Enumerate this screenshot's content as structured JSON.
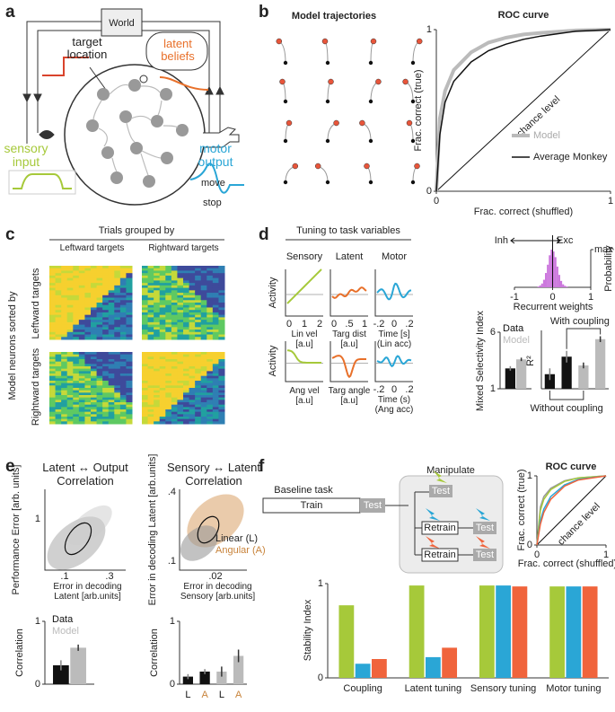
{
  "panel_labels": [
    "a",
    "b",
    "c",
    "d",
    "e",
    "f"
  ],
  "schematic": {
    "world": "World",
    "target_location": "target location",
    "latent_beliefs": "latent beliefs",
    "sensory_input": "sensory input",
    "motor_output": "motor output",
    "move": "move",
    "stop": "stop"
  },
  "trajectories": {
    "title": "Model trajectories"
  },
  "heatmap": {
    "title": "Trials grouped by",
    "columns": [
      "Leftward targets",
      "Rightward targets"
    ],
    "row_title": "Model neurons sorted by",
    "rows": [
      "Leftward targets",
      "Rightward targets"
    ]
  },
  "tuning": {
    "title": "Tuning to task variables",
    "columns": [
      "Sensory",
      "Latent",
      "Motor"
    ],
    "ylabel": "Activity",
    "rows": [
      {
        "ticks": [
          [
            "0",
            "1",
            "2"
          ],
          [
            "0",
            ".5",
            "1"
          ],
          [
            "-.2",
            "0",
            ".2"
          ]
        ],
        "xlabels": [
          "Lin vel [a.u]",
          "Targ dist [a.u]",
          "Time [s] (Lin acc)"
        ]
      },
      {
        "ticks": [
          [],
          [],
          [
            "-.2",
            "0",
            ".2"
          ]
        ],
        "xlabels": [
          "Ang vel [a.u]",
          "Targ angle [a.u]",
          "Time (s) (Ang acc)"
        ]
      }
    ]
  },
  "scatter_panels": [
    {
      "title": "Latent ↔ Output Correlation",
      "xlabel": "Error in decoding Latent [arb.units]",
      "ylabel": "Performance Error [arb. units]",
      "xticks": [
        ".1",
        ".3"
      ],
      "yticks": [
        "1"
      ]
    },
    {
      "title": "Sensory ↔ Latent Correlation",
      "xlabel": "Error in decoding Sensory [arb.units]",
      "ylabel": "Error in decoding Latent [arb.units]",
      "xticks": [
        ".02"
      ],
      "yticks": [
        ".4",
        ".1"
      ],
      "legend": [
        "Linear (L)",
        "Angular (A)"
      ]
    }
  ],
  "training": {
    "baseline": "Baseline task",
    "train": "Train",
    "test": "Test",
    "manipulate": "Manipulate",
    "retrain": "Retrain"
  },
  "chart_data": [
    {
      "type": "line",
      "title": "ROC curve",
      "xlabel": "Frac. correct (shuffled)",
      "ylabel": "Frac. correct (true)",
      "annotation": "chance level",
      "xlim": [
        0,
        1
      ],
      "ylim": [
        0,
        1
      ],
      "xticks": [
        0,
        1
      ],
      "yticks": [
        0,
        1
      ],
      "legend": "lower right",
      "series": [
        {
          "name": "Model",
          "color": "#bbbbbb",
          "linewidth": 4,
          "x": [
            0,
            0.02,
            0.05,
            0.1,
            0.2,
            0.3,
            0.4,
            0.5,
            0.6,
            0.8,
            1
          ],
          "values": [
            0,
            0.45,
            0.62,
            0.75,
            0.86,
            0.92,
            0.95,
            0.97,
            0.98,
            0.995,
            1
          ]
        },
        {
          "name": "Average Monkey",
          "color": "#111111",
          "linewidth": 1.5,
          "x": [
            0,
            0.02,
            0.05,
            0.1,
            0.2,
            0.3,
            0.4,
            0.5,
            0.6,
            0.8,
            1
          ],
          "values": [
            0,
            0.35,
            0.55,
            0.68,
            0.8,
            0.87,
            0.91,
            0.94,
            0.96,
            0.99,
            1
          ]
        }
      ]
    },
    {
      "type": "histogram",
      "xlabel": "Recurrent weights",
      "ylabel": "Probability",
      "annotations": [
        "Inh",
        "Exc"
      ],
      "color": "#cc77dd",
      "bins": [
        -0.4,
        -0.35,
        -0.3,
        -0.25,
        -0.2,
        -0.15,
        -0.1,
        -0.05,
        0,
        0.05,
        0.1,
        0.15,
        0.2,
        0.25,
        0.3,
        0.35,
        0.4
      ],
      "values": [
        0.02,
        0.05,
        0.1,
        0.2,
        0.38,
        0.6,
        0.85,
        1,
        0.95,
        0.8,
        0.55,
        0.33,
        0.17,
        0.08,
        0.04,
        0.02
      ],
      "xlim": [
        -1,
        1
      ],
      "xticks": [
        -1,
        0,
        1
      ],
      "ylim": [
        0,
        1
      ],
      "yticks": [
        {
          "value": 1,
          "label": "max"
        }
      ]
    },
    {
      "type": "bar",
      "ylabel": "Mixed Selectivity Index",
      "categories": [
        null
      ],
      "series": [
        {
          "name": "Data",
          "color": "#111111",
          "values": [
            2.8
          ],
          "errors": [
            0.2
          ]
        },
        {
          "name": "Model",
          "color": "#bbbbbb",
          "values": [
            3.6
          ],
          "errors": [
            0.15
          ]
        }
      ],
      "ylim": [
        1,
        6
      ],
      "yticks": [
        1,
        6
      ]
    },
    {
      "type": "bar",
      "ylabel": "R²",
      "categories": [
        null,
        null,
        null,
        null
      ],
      "values": [
        0.25,
        0.55,
        0.4,
        0.85
      ],
      "errors": [
        0.1,
        0.1,
        0.05,
        0.05
      ],
      "colors": [
        "#111111",
        "#111111",
        "#bbbbbb",
        "#bbbbbb"
      ],
      "ylim": [
        0,
        1
      ],
      "annotations": [
        "With coupling",
        "Without coupling"
      ]
    },
    {
      "type": "bar",
      "ylabel": "Correlation",
      "categories": [
        null
      ],
      "series": [
        {
          "name": "Data",
          "color": "#111111",
          "values": [
            0.3
          ],
          "errors": [
            0.08
          ]
        },
        {
          "name": "Model",
          "color": "#bbbbbb",
          "values": [
            0.58
          ],
          "errors": [
            0.05
          ]
        }
      ],
      "ylim": [
        0,
        1
      ],
      "yticks": [
        0,
        1
      ]
    },
    {
      "type": "bar",
      "ylabel": "Correlation",
      "categories": [
        "L",
        "A",
        "L",
        "A"
      ],
      "values": [
        0.12,
        0.2,
        0.2,
        0.45
      ],
      "errors": [
        0.04,
        0.04,
        0.08,
        0.1
      ],
      "colors": [
        "#111111",
        "#111111",
        "#bbbbbb",
        "#bbbbbb"
      ],
      "label_colors": [
        "#111111",
        "#c8833a",
        "#111111",
        "#c8833a"
      ],
      "ylim": [
        0,
        1
      ],
      "yticks": [
        0,
        1
      ]
    },
    {
      "type": "line",
      "title": "ROC curve",
      "xlabel": "Frac. correct (shuffled)",
      "ylabel": "Frac. correct (true)",
      "annotation": "chance level",
      "xlim": [
        0,
        1
      ],
      "ylim": [
        0,
        1
      ],
      "xticks": [
        0,
        1
      ],
      "yticks": [
        0,
        1
      ],
      "series": [
        {
          "color": "#999999",
          "linewidth": 1.5,
          "x": [
            0,
            0.05,
            0.1,
            0.2,
            0.4,
            0.6,
            1
          ],
          "values": [
            0,
            0.55,
            0.7,
            0.82,
            0.93,
            0.97,
            1
          ]
        },
        {
          "color": "#a6c93a",
          "linewidth": 1.5,
          "x": [
            0,
            0.05,
            0.1,
            0.2,
            0.4,
            0.6,
            1
          ],
          "values": [
            0,
            0.5,
            0.66,
            0.8,
            0.92,
            0.97,
            1
          ]
        },
        {
          "color": "#2aa6d6",
          "linewidth": 1.5,
          "x": [
            0,
            0.05,
            0.1,
            0.2,
            0.4,
            0.6,
            1
          ],
          "values": [
            0,
            0.35,
            0.52,
            0.7,
            0.87,
            0.95,
            1
          ]
        },
        {
          "color": "#f0643c",
          "linewidth": 1.5,
          "x": [
            0,
            0.05,
            0.1,
            0.2,
            0.4,
            0.6,
            1
          ],
          "values": [
            0,
            0.3,
            0.47,
            0.66,
            0.85,
            0.94,
            1
          ]
        }
      ]
    },
    {
      "type": "bar",
      "ylabel": "Stability Index",
      "categories": [
        "Coupling",
        "Latent tuning",
        "Sensory tuning",
        "Motor tuning"
      ],
      "series": [
        {
          "color": "#a6c93a",
          "values": [
            0.77,
            0.98,
            0.98,
            0.97
          ]
        },
        {
          "color": "#2aa6d6",
          "values": [
            0.15,
            0.22,
            0.98,
            0.97
          ]
        },
        {
          "color": "#f0643c",
          "values": [
            0.2,
            0.32,
            0.97,
            0.97
          ]
        }
      ],
      "ylim": [
        0,
        1
      ],
      "yticks": [
        0,
        1
      ]
    }
  ]
}
